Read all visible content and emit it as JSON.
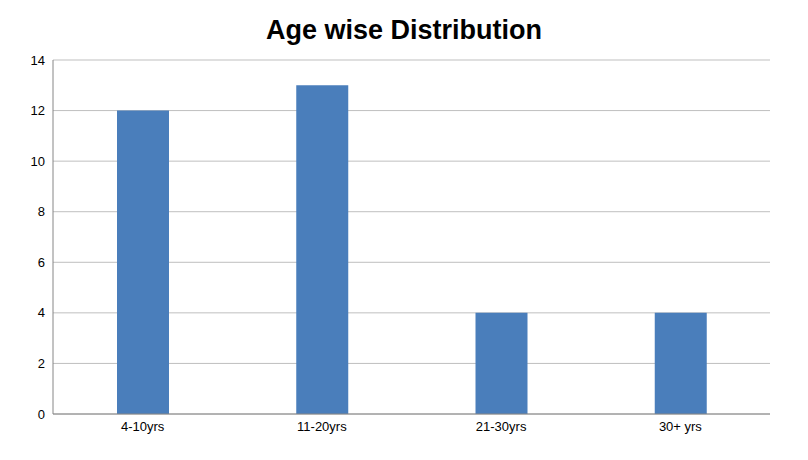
{
  "chart_data": {
    "type": "bar",
    "title": "Age wise Distribution",
    "categories": [
      "4-10yrs",
      "11-20yrs",
      "21-30yrs",
      "30+ yrs"
    ],
    "values": [
      12,
      13,
      4,
      4
    ],
    "color": "#4a7ebb",
    "ylim": [
      0,
      14
    ],
    "yticks": [
      0,
      2,
      4,
      6,
      8,
      10,
      12,
      14
    ],
    "grid": true
  }
}
